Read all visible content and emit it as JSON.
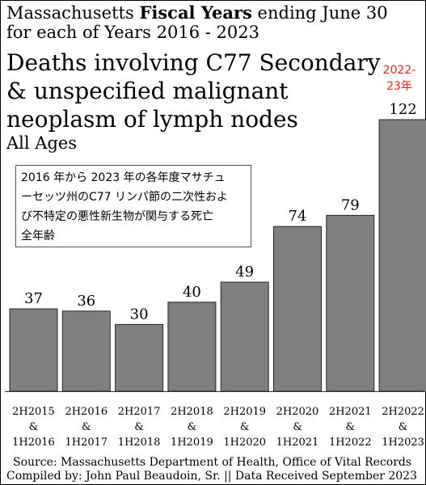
{
  "header": {
    "line1_a": "Massachusetts ",
    "line1_b": "Fiscal Years",
    "line1_c": " ending June 30",
    "line2": "for each of Years 2016 - 2023"
  },
  "annotation": {
    "line1": "2022-",
    "line2": "23年"
  },
  "japanese_note": {
    "lines": [
      "2016 年から 2023 年の各年度マサチュ",
      "ーセッツ州のC77 リンパ節の二次性およ",
      "び不特定の悪性新生物が関与する死亡",
      "全年齢"
    ]
  },
  "footer": {
    "source": "Source:  Massachusetts Department of Health, Office of Vital Records",
    "compiled": "Compiled by:  John Paul Beaudoin, Sr. || Data Received September 2023"
  },
  "colors": {
    "bar": "#7f7f7f",
    "bar_edge": "#262626"
  },
  "chart_data": {
    "type": "bar",
    "title": "Deaths involving C77 Secondary & unspecified malignant neoplasm of lymph nodes",
    "subtitle": "All Ages",
    "categories": [
      [
        "2H2015",
        "&",
        "1H2016"
      ],
      [
        "2H2016",
        "&",
        "1H2017"
      ],
      [
        "2H2017",
        "&",
        "1H2018"
      ],
      [
        "2H2018",
        "&",
        "1H2019"
      ],
      [
        "2H2019",
        "&",
        "1H2020"
      ],
      [
        "2H2020",
        "&",
        "1H2021"
      ],
      [
        "2H2021",
        "&",
        "1H2022"
      ],
      [
        "2H2022",
        "&",
        "1H2023"
      ]
    ],
    "values": [
      37,
      36,
      30,
      40,
      49,
      74,
      79,
      122
    ],
    "data_labels": [
      "37",
      "36",
      "30",
      "40",
      "49",
      "74",
      "79",
      "122"
    ],
    "ylim": [
      0,
      122
    ],
    "grid": false,
    "legend": "none"
  }
}
